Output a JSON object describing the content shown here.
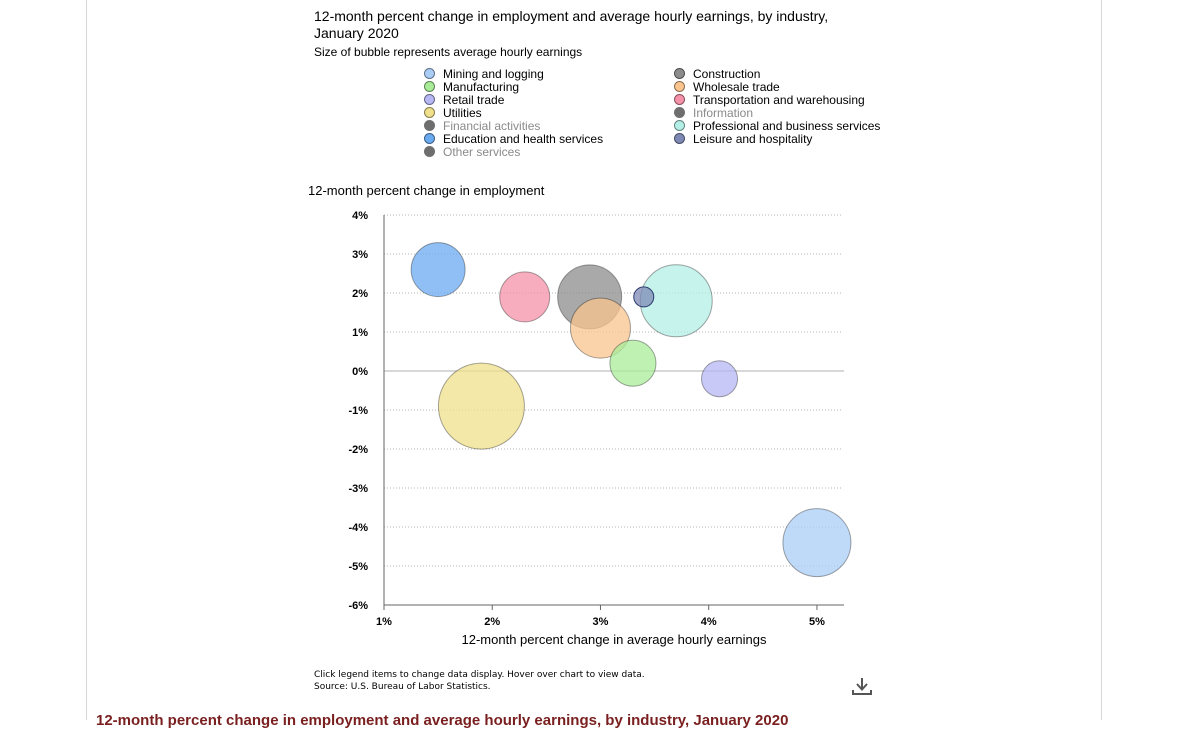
{
  "chart_title": "12-month percent change in employment and average hourly earnings, by industry, January 2020",
  "chart_subtitle": "Size of bubble represents average hourly earnings",
  "notes": {
    "line1": "Click legend items to change data display. Hover over chart to view data.",
    "line2": "Source: U.S. Bureau of Labor Statistics."
  },
  "download_icon": "download-icon",
  "bottom_heading": "12-month percent change in employment and average hourly earnings, by industry, January 2020",
  "chart_data": {
    "type": "bubble",
    "title": "12-month percent change in employment and average hourly earnings, by industry, January 2020",
    "subtitle": "Size of bubble represents average hourly earnings",
    "xlabel": "12-month percent change in average hourly earnings",
    "ylabel": "12-month percent change in employment",
    "xlim": [
      1,
      5.25
    ],
    "ylim": [
      -6,
      4
    ],
    "x_ticks": [
      1,
      2,
      3,
      4,
      5
    ],
    "y_ticks": [
      4,
      3,
      2,
      1,
      0,
      -1,
      -2,
      -3,
      -4,
      -5,
      -6
    ],
    "x_tick_labels": [
      "1%",
      "2%",
      "3%",
      "4%",
      "5%"
    ],
    "y_tick_labels": [
      "4%",
      "3%",
      "2%",
      "1%",
      "0%",
      "-1%",
      "-2%",
      "-3%",
      "-4%",
      "-5%",
      "-6%"
    ],
    "grid": "horizontal dotted",
    "legend_position": "top",
    "series": [
      {
        "name": "Mining and logging",
        "x": 5.0,
        "y": -4.4,
        "size": 34,
        "color": "#a9cdf5",
        "visible": true
      },
      {
        "name": "Construction",
        "x": 2.9,
        "y": 1.9,
        "size": 32,
        "color": "#8c8c8c",
        "visible": true
      },
      {
        "name": "Manufacturing",
        "x": 3.3,
        "y": 0.2,
        "size": 23,
        "color": "#a8ec98",
        "visible": true
      },
      {
        "name": "Wholesale trade",
        "x": 3.0,
        "y": 1.1,
        "size": 30,
        "color": "#fac48f",
        "visible": true
      },
      {
        "name": "Retail trade",
        "x": 4.1,
        "y": -0.2,
        "size": 18,
        "color": "#b7b7f4",
        "visible": true
      },
      {
        "name": "Transportation and warehousing",
        "x": 2.3,
        "y": 1.9,
        "size": 25,
        "color": "#f591a8",
        "visible": true
      },
      {
        "name": "Utilities",
        "x": 1.9,
        "y": -0.9,
        "size": 43,
        "color": "#f0e08c",
        "visible": true
      },
      {
        "name": "Information",
        "x": null,
        "y": null,
        "size": null,
        "color": "#6e6e6e",
        "visible": false
      },
      {
        "name": "Financial activities",
        "x": null,
        "y": null,
        "size": null,
        "color": "#6e6e6e",
        "visible": false
      },
      {
        "name": "Professional and business services",
        "x": 3.7,
        "y": 1.8,
        "size": 36,
        "color": "#b3efe6",
        "visible": true
      },
      {
        "name": "Education and health services",
        "x": 1.5,
        "y": 2.6,
        "size": 27,
        "color": "#6aaaf0",
        "visible": true
      },
      {
        "name": "Leisure and hospitality",
        "x": 3.4,
        "y": 1.9,
        "size": 10,
        "color": "#7e8ab5",
        "visible": true
      },
      {
        "name": "Other services",
        "x": null,
        "y": null,
        "size": null,
        "color": "#6e6e6e",
        "visible": false
      }
    ]
  }
}
